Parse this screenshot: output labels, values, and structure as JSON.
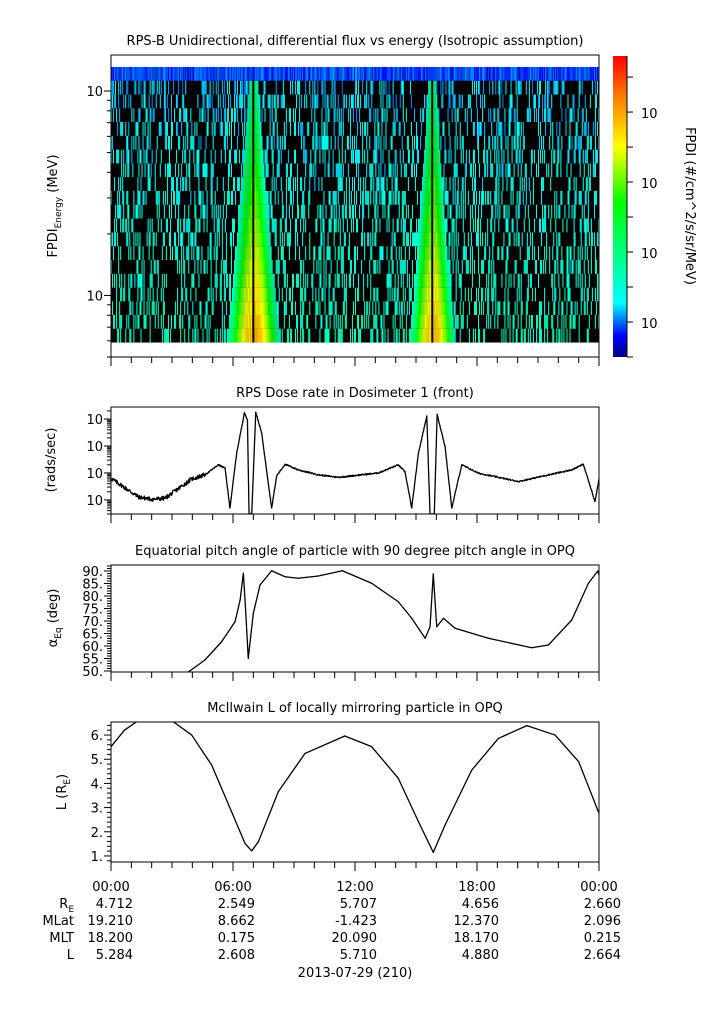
{
  "figure": {
    "x_axis": {
      "range_hours": [
        0,
        24
      ],
      "tick_hours": [
        0,
        6,
        12,
        18,
        24
      ],
      "tick_labels": [
        "00:00",
        "06:00",
        "12:00",
        "18:00",
        "00:00"
      ]
    },
    "ephemeris": [
      {
        "label": "R",
        "label_sub": "E",
        "values": [
          "4.712",
          "2.549",
          "5.707",
          "4.656",
          "2.660"
        ]
      },
      {
        "label": "MLat",
        "values": [
          "19.210",
          "8.662",
          "-1.423",
          "12.370",
          "2.096"
        ]
      },
      {
        "label": "MLT",
        "values": [
          "18.200",
          "0.175",
          "20.090",
          "18.170",
          "0.215"
        ]
      },
      {
        "label": "L",
        "values": [
          "5.284",
          "2.608",
          "5.710",
          "4.880",
          "2.664"
        ]
      }
    ],
    "date_label": "2013-07-29 (210)"
  },
  "chart_data": [
    {
      "type": "heatmap",
      "title": "RPS-B  Unidirectional, differential flux vs energy (Isotropic assumption)",
      "ylabel": {
        "main": "FPDI",
        "sub": "Energy",
        "unit": " (MeV)"
      },
      "yscale": "log",
      "ylim": [
        50,
        1500
      ],
      "yticks": [
        {
          "value": 1000,
          "base": "10",
          "exp": "3"
        },
        {
          "value": 100,
          "base": "10",
          "exp": "2"
        }
      ],
      "energy_bins_mev": [
        63.6,
        74.3,
        86.7,
        101,
        118,
        138,
        161,
        188,
        220,
        257,
        300,
        351,
        409,
        478,
        558,
        653,
        762,
        889,
        1039,
        1213
      ],
      "time_step_h": 0.05,
      "bands": [
        {
          "center_h": 7.0,
          "peak_flux_low_energy": 40,
          "peak_flux_high_energy": 0.016,
          "halfwidth_h_low_energy": 1.1,
          "halfwidth_h_high_energy": 0.35
        },
        {
          "center_h": 15.8,
          "peak_flux_low_energy": 30,
          "peak_flux_high_energy": 0.016,
          "halfwidth_h_low_energy": 0.95,
          "halfwidth_h_high_energy": 0.3
        }
      ],
      "background": {
        "fill_fraction": 0.32,
        "flux_range_low_energy": [
          0.0008,
          0.004
        ],
        "flux_range_high_energy": [
          0.0001,
          0.0006
        ],
        "top_bin_flux_range": [
          4e-05,
          0.00015
        ]
      },
      "no_data_color": "#000000",
      "colorbar": {
        "label": "FPDI (#/cm^2/s/sr/MeV)",
        "scale": "log",
        "zlim": [
          1e-05,
          4000
        ],
        "ticks": [
          {
            "value": 100,
            "base": "10",
            "exp": "2"
          },
          {
            "value": 1,
            "base": "10",
            "exp": "0"
          },
          {
            "value": 0.01,
            "base": "10",
            "exp": "-2"
          },
          {
            "value": 0.0001,
            "base": "10",
            "exp": "-4"
          }
        ],
        "colormap": [
          {
            "log": -5.0,
            "color": "#000080"
          },
          {
            "log": -4.4,
            "color": "#0000ff"
          },
          {
            "log": -3.45,
            "color": "#00ffff"
          },
          {
            "log": -0.6,
            "color": "#00ff00"
          },
          {
            "log": 1.0,
            "color": "#ffff00"
          },
          {
            "log": 2.4,
            "color": "#ff8000"
          },
          {
            "log": 3.6,
            "color": "#ff0000"
          }
        ]
      }
    },
    {
      "type": "line",
      "title": "RPS  Dose rate in Dosimeter 1 (front)",
      "ylabel": {
        "main": "(rads/sec)"
      },
      "yscale": "log",
      "ylim": [
        3e-07,
        0.0028
      ],
      "yticks": [
        {
          "value": 0.001,
          "base": "10",
          "exp": "-3"
        },
        {
          "value": 0.0001,
          "base": "10",
          "exp": "-4"
        },
        {
          "value": 1e-05,
          "base": "10",
          "exp": "-5"
        },
        {
          "value": 1e-06,
          "base": "10",
          "exp": "-6"
        }
      ],
      "x": [
        0,
        1.34,
        2.0,
        2.66,
        3.97,
        4.62,
        5.28,
        5.61,
        5.85,
        6.18,
        6.56,
        6.71,
        6.79,
        6.92,
        7.12,
        7.41,
        7.9,
        8.15,
        8.56,
        9.21,
        10.2,
        11.18,
        13.15,
        14.13,
        14.46,
        14.79,
        15.12,
        15.53,
        15.69,
        15.9,
        16.04,
        16.43,
        16.76,
        17.25,
        18.07,
        20.04,
        21.51,
        22.66,
        23.23,
        23.8,
        24.0
      ],
      "y": [
        6.3e-06,
        1.3e-06,
        1.05e-06,
        1.15e-06,
        6e-06,
        8.5e-06,
        2e-05,
        1.5e-05,
        5e-07,
        5.4e-05,
        0.0017,
        0.00091,
        3e-07,
        3e-07,
        0.0018,
        0.0003,
        5e-07,
        7.9e-06,
        2.1e-05,
        1.3e-05,
        8.5e-06,
        6.9e-06,
        1e-05,
        2e-05,
        1.1e-05,
        5e-07,
        5.4e-05,
        0.0013,
        3e-07,
        3e-07,
        0.0015,
        9.5e-05,
        5e-07,
        2e-05,
        9.8e-06,
        4.8e-06,
        8.5e-06,
        1.3e-05,
        2.1e-05,
        8.7e-07,
        5.9e-06
      ]
    },
    {
      "type": "line",
      "title": "Equatorial pitch angle of particle with 90 degree pitch angle in OPQ",
      "ylabel": {
        "main": "α",
        "sub": "Eq",
        "unit": " (deg)"
      },
      "yscale": "linear",
      "ylim": [
        49.6,
        92.4
      ],
      "yticks": [
        {
          "value": 90,
          "label": "90."
        },
        {
          "value": 85,
          "label": "85."
        },
        {
          "value": 80,
          "label": "80."
        },
        {
          "value": 75,
          "label": "75."
        },
        {
          "value": 70,
          "label": "70."
        },
        {
          "value": 65,
          "label": "65."
        },
        {
          "value": 60,
          "label": "60."
        },
        {
          "value": 55,
          "label": "55."
        },
        {
          "value": 50,
          "label": "50."
        }
      ],
      "x": [
        3.8,
        4.62,
        5.44,
        6.1,
        6.35,
        6.51,
        6.62,
        6.75,
        7.0,
        7.33,
        7.9,
        8.56,
        9.21,
        10.2,
        11.38,
        12.82,
        14.13,
        14.79,
        15.45,
        15.69,
        15.85,
        16.02,
        16.35,
        16.92,
        18.56,
        20.69,
        21.51,
        22.66,
        23.48,
        23.94,
        24.0
      ],
      "y": [
        49.6,
        54.4,
        61.7,
        69.7,
        78.4,
        89.1,
        74.4,
        55.1,
        73.1,
        84.4,
        90.1,
        87.7,
        87.1,
        88.0,
        90.1,
        85.1,
        77.7,
        71.1,
        63.1,
        67.7,
        88.8,
        67.7,
        71.1,
        67.1,
        63.1,
        59.3,
        60.4,
        70.4,
        85.1,
        90.0,
        88.5
      ]
    },
    {
      "type": "line",
      "title": "McIlwain L of locally mirroring particle in OPQ",
      "ylabel": {
        "main": "L (R",
        "sub": "E",
        "unit": ")"
      },
      "yscale": "linear",
      "ylim": [
        0.75,
        6.54
      ],
      "yticks": [
        {
          "value": 6,
          "label": "6."
        },
        {
          "value": 5,
          "label": "5."
        },
        {
          "value": 4,
          "label": "4."
        },
        {
          "value": 3,
          "label": "3."
        },
        {
          "value": 2,
          "label": "2."
        },
        {
          "value": 1,
          "label": "1."
        }
      ],
      "x": [
        0,
        0.66,
        1.34,
        2.98,
        3.97,
        4.95,
        5.93,
        6.59,
        6.92,
        7.25,
        8.23,
        9.54,
        11.5,
        12.82,
        14.13,
        15.12,
        15.85,
        16.43,
        17.74,
        19.05,
        20.45,
        21.84,
        23.0,
        24.0
      ],
      "y": [
        5.52,
        6.2,
        6.6,
        6.6,
        6.0,
        4.76,
        2.83,
        1.52,
        1.21,
        1.59,
        3.66,
        5.24,
        5.96,
        5.52,
        4.21,
        2.42,
        1.15,
        2.28,
        4.55,
        5.86,
        6.39,
        6.0,
        4.9,
        2.76
      ]
    }
  ]
}
